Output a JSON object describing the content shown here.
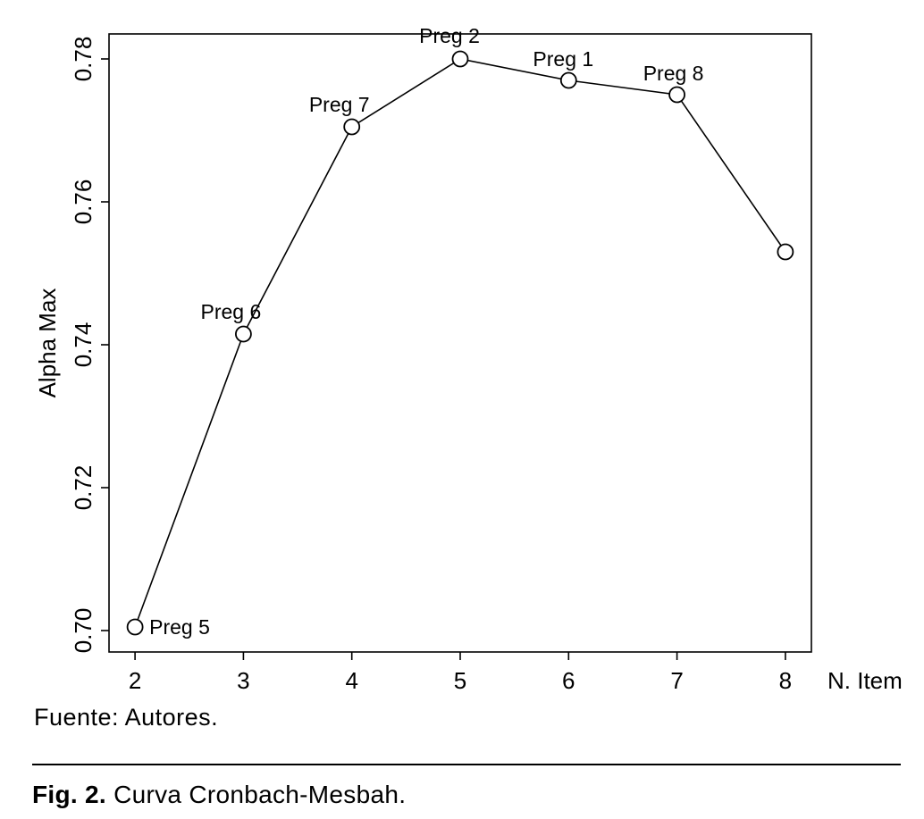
{
  "figure": {
    "source_note": "Fuente: Autores.",
    "caption": {
      "label": "Fig. 2.",
      "text": " Curva Cronbach-Mesbah."
    }
  },
  "chart_data": {
    "type": "line",
    "title": "",
    "xlabel": "N. Item",
    "ylabel": "Alpha Max",
    "x": [
      2,
      3,
      4,
      5,
      6,
      7,
      8
    ],
    "values": [
      0.7005,
      0.7415,
      0.7705,
      0.78,
      0.777,
      0.775,
      0.753
    ],
    "point_labels": [
      "Preg 5",
      "Preg 6",
      "Preg 7",
      "Preg 2",
      "Preg 1",
      "Preg 8",
      ""
    ],
    "x_ticks": [
      2,
      3,
      4,
      5,
      6,
      7,
      8
    ],
    "y_ticks": [
      0.7,
      0.72,
      0.74,
      0.76,
      0.78
    ],
    "xlim": [
      1.76,
      8.24
    ],
    "ylim": [
      0.697,
      0.7835
    ],
    "grid": false,
    "legend": false,
    "marker": "open-circle",
    "line_color": "#000000",
    "background_color": "#ffffff",
    "label_offsets": [
      [
        16,
        8,
        "start"
      ],
      [
        -14,
        -17,
        "middle"
      ],
      [
        -14,
        -17,
        "middle"
      ],
      [
        -12,
        -18,
        "middle"
      ],
      [
        -6,
        -16,
        "middle"
      ],
      [
        -4,
        -16,
        "middle"
      ],
      null
    ]
  }
}
